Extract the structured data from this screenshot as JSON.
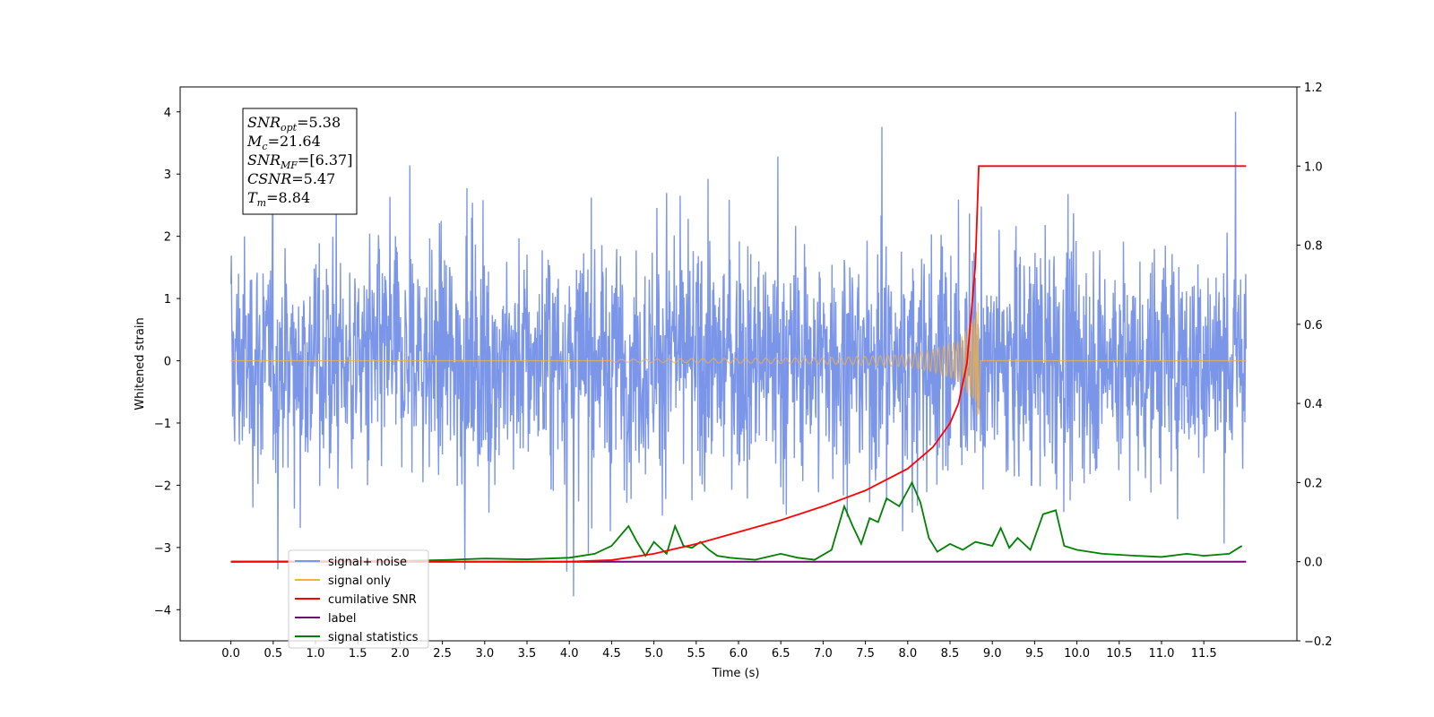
{
  "chart_data": {
    "type": "line",
    "xlabel": "Time (s)",
    "ylabel": "Whitened strain",
    "xlim": [
      -0.6,
      12.6
    ],
    "ylim": [
      -4.5,
      4.4
    ],
    "ylim_right": [
      -0.2,
      1.2
    ],
    "x_ticks": [
      "0.0",
      "0.5",
      "1.0",
      "1.5",
      "2.0",
      "2.5",
      "3.0",
      "3.5",
      "4.0",
      "4.5",
      "5.0",
      "5.5",
      "6.0",
      "6.5",
      "7.0",
      "7.5",
      "8.0",
      "8.5",
      "9.0",
      "9.5",
      "10.0",
      "10.5",
      "11.0",
      "11.5"
    ],
    "y_ticks_left": [
      "4",
      "3",
      "2",
      "1",
      "0",
      "−1",
      "−2",
      "−3",
      "−4"
    ],
    "y_ticks_right": [
      "1.2",
      "1.0",
      "0.8",
      "0.6",
      "0.4",
      "0.2",
      "0.0",
      "−0.2"
    ],
    "grid": false,
    "legend_position": "bottom-left",
    "merger_time": 8.84,
    "series": [
      {
        "name": "signal+ noise",
        "axis": "left",
        "color": "#7b96e8",
        "noise_band": {
          "typical": 1.5,
          "max": 4.0,
          "x_range": [
            0.0,
            12.0
          ]
        }
      },
      {
        "name": "signal only",
        "axis": "left",
        "color": "#f5b041",
        "chirp_envelope": {
          "x": [
            4.5,
            6.0,
            7.0,
            7.5,
            8.0,
            8.3,
            8.6,
            8.8,
            8.84,
            8.86
          ],
          "amp": [
            0.02,
            0.04,
            0.05,
            0.07,
            0.1,
            0.18,
            0.32,
            0.7,
            1.1,
            0.0
          ]
        }
      },
      {
        "name": "cumilative SNR",
        "axis": "right",
        "color": "#ff0000",
        "x": [
          0.0,
          4.0,
          4.5,
          5.0,
          5.5,
          6.0,
          6.5,
          7.0,
          7.5,
          8.0,
          8.3,
          8.5,
          8.6,
          8.7,
          8.8,
          8.84,
          12.0
        ],
        "y": [
          0.0,
          0.0,
          0.004,
          0.02,
          0.045,
          0.075,
          0.105,
          0.14,
          0.18,
          0.235,
          0.29,
          0.35,
          0.4,
          0.5,
          0.75,
          1.0,
          1.0
        ]
      },
      {
        "name": "label",
        "axis": "right",
        "color": "#6a0f6e",
        "x": [
          0.0,
          12.0
        ],
        "y": [
          0.0,
          0.0
        ]
      },
      {
        "name": "signal statistics",
        "axis": "right",
        "color": "#008000",
        "x": [
          0.0,
          2.0,
          2.5,
          3.0,
          3.5,
          4.0,
          4.3,
          4.5,
          4.7,
          4.8,
          4.9,
          5.0,
          5.15,
          5.25,
          5.35,
          5.45,
          5.55,
          5.65,
          5.75,
          5.9,
          6.0,
          6.2,
          6.5,
          6.7,
          6.9,
          7.1,
          7.25,
          7.35,
          7.45,
          7.55,
          7.65,
          7.75,
          7.9,
          8.05,
          8.15,
          8.25,
          8.35,
          8.5,
          8.65,
          8.8,
          9.0,
          9.1,
          9.2,
          9.3,
          9.45,
          9.6,
          9.75,
          9.85,
          10.0,
          10.3,
          10.7,
          11.0,
          11.3,
          11.5,
          11.8,
          11.95
        ],
        "y": [
          0.0,
          0.002,
          0.004,
          0.008,
          0.006,
          0.01,
          0.02,
          0.04,
          0.09,
          0.05,
          0.015,
          0.05,
          0.02,
          0.09,
          0.04,
          0.035,
          0.05,
          0.03,
          0.015,
          0.01,
          0.008,
          0.005,
          0.02,
          0.01,
          0.005,
          0.03,
          0.14,
          0.09,
          0.045,
          0.11,
          0.1,
          0.16,
          0.14,
          0.2,
          0.15,
          0.06,
          0.025,
          0.045,
          0.03,
          0.05,
          0.04,
          0.085,
          0.035,
          0.06,
          0.03,
          0.12,
          0.13,
          0.04,
          0.03,
          0.02,
          0.015,
          0.012,
          0.02,
          0.015,
          0.02,
          0.04
        ]
      }
    ]
  },
  "stats_box": [
    {
      "sym": "SNR",
      "sub": "opt",
      "val": "=5.38"
    },
    {
      "sym": "M",
      "sub": "c",
      "val": "=21.64"
    },
    {
      "sym": "SNR",
      "sub": "MF",
      "val": "=[6.37]"
    },
    {
      "sym": "CSNR",
      "sub": "",
      "val": "=5.47"
    },
    {
      "sym": "T",
      "sub": "m",
      "val": "=8.84"
    }
  ],
  "legend": [
    {
      "label": "signal+ noise",
      "color": "#7b96e8"
    },
    {
      "label": "signal only",
      "color": "#f5b041"
    },
    {
      "label": "cumilative SNR",
      "color": "#ff0000"
    },
    {
      "label": "label",
      "color": "#6a0f6e"
    },
    {
      "label": "signal statistics",
      "color": "#008000"
    }
  ]
}
